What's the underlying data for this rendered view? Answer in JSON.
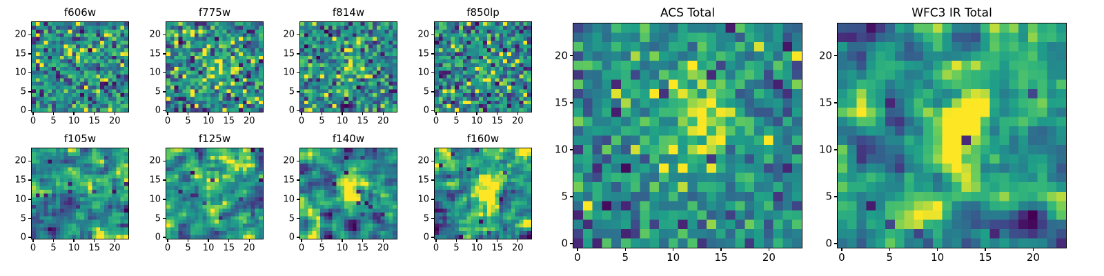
{
  "figure": {
    "background": "#ffffff",
    "colormap": "viridis",
    "viridis_anchors": [
      "#440154",
      "#482878",
      "#3e4a89",
      "#31688e",
      "#26828e",
      "#1f9e89",
      "#35b779",
      "#6dcd59",
      "#fde725"
    ]
  },
  "chart_data": [
    {
      "type": "heatmap",
      "title": "f606w",
      "grid_size": 24,
      "xlim": [
        -0.5,
        23.5
      ],
      "ylim": [
        -0.5,
        23.5
      ],
      "xticks": [
        0,
        5,
        10,
        15,
        20
      ],
      "yticks": [
        0,
        5,
        10,
        15,
        20
      ],
      "colormap": "viridis",
      "description": "noisy ACS filter cutout, speckled pixels, faint central source",
      "gen": {
        "seed": 606,
        "base": 0.58,
        "noise": 0.22,
        "smooth": 0,
        "dark": 0.06,
        "blob": {
          "x": 12,
          "y": 12,
          "sx": 3.0,
          "sy": 4.0,
          "amp": 0.08
        }
      }
    },
    {
      "type": "heatmap",
      "title": "f775w",
      "grid_size": 24,
      "xlim": [
        -0.5,
        23.5
      ],
      "ylim": [
        -0.5,
        23.5
      ],
      "xticks": [
        0,
        5,
        10,
        15,
        20
      ],
      "yticks": [
        0,
        5,
        10,
        15,
        20
      ],
      "colormap": "viridis",
      "description": "noisy ACS filter cutout, faint brightening near center",
      "gen": {
        "seed": 775,
        "base": 0.58,
        "noise": 0.22,
        "smooth": 0,
        "dark": 0.05,
        "blob": {
          "x": 12,
          "y": 12,
          "sx": 3.0,
          "sy": 4.0,
          "amp": 0.18
        }
      }
    },
    {
      "type": "heatmap",
      "title": "f814w",
      "grid_size": 24,
      "xlim": [
        -0.5,
        23.5
      ],
      "ylim": [
        -0.5,
        23.5
      ],
      "xticks": [
        0,
        5,
        10,
        15,
        20
      ],
      "yticks": [
        0,
        5,
        10,
        15,
        20
      ],
      "colormap": "viridis",
      "description": "noisy ACS filter cutout, weak vertical central source",
      "gen": {
        "seed": 814,
        "base": 0.55,
        "noise": 0.21,
        "smooth": 0,
        "dark": 0.06,
        "blob": {
          "x": 12,
          "y": 13,
          "sx": 2.5,
          "sy": 5.0,
          "amp": 0.25
        }
      }
    },
    {
      "type": "heatmap",
      "title": "f850lp",
      "grid_size": 24,
      "xlim": [
        -0.5,
        23.5
      ],
      "ylim": [
        -0.5,
        23.5
      ],
      "xticks": [
        0,
        5,
        10,
        15,
        20
      ],
      "yticks": [
        0,
        5,
        10,
        15,
        20
      ],
      "colormap": "viridis",
      "description": "noisy ACS filter cutout with scattered dark pixels",
      "gen": {
        "seed": 850,
        "base": 0.55,
        "noise": 0.22,
        "smooth": 0,
        "dark": 0.07,
        "blob": {
          "x": 12,
          "y": 12,
          "sx": 3.0,
          "sy": 4.0,
          "amp": 0.15
        }
      }
    },
    {
      "type": "heatmap",
      "title": "f105w",
      "grid_size": 24,
      "xlim": [
        -0.5,
        23.5
      ],
      "ylim": [
        -0.5,
        23.5
      ],
      "xticks": [
        0,
        5,
        10,
        15,
        20
      ],
      "yticks": [
        0,
        5,
        10,
        15,
        20
      ],
      "colormap": "viridis",
      "description": "smoother WFC3 IR cutout, mottled background, faint source",
      "gen": {
        "seed": 105,
        "base": 0.58,
        "noise": 0.27,
        "smooth": 1,
        "dark": 0.02,
        "blob": {
          "x": 11,
          "y": 12,
          "sx": 3.0,
          "sy": 4.0,
          "amp": 0.15
        }
      }
    },
    {
      "type": "heatmap",
      "title": "f125w",
      "grid_size": 24,
      "xlim": [
        -0.5,
        23.5
      ],
      "ylim": [
        -0.5,
        23.5
      ],
      "xticks": [
        0,
        5,
        10,
        15,
        20
      ],
      "yticks": [
        0,
        5,
        10,
        15,
        20
      ],
      "colormap": "viridis",
      "description": "smoother WFC3 IR cutout, central brightening",
      "gen": {
        "seed": 125,
        "base": 0.58,
        "noise": 0.27,
        "smooth": 1,
        "dark": 0.02,
        "blob": {
          "x": 12,
          "y": 11,
          "sx": 3.0,
          "sy": 4.0,
          "amp": 0.3
        }
      }
    },
    {
      "type": "heatmap",
      "title": "f140w",
      "grid_size": 24,
      "xlim": [
        -0.5,
        23.5
      ],
      "ylim": [
        -0.5,
        23.5
      ],
      "xticks": [
        0,
        5,
        10,
        15,
        20
      ],
      "yticks": [
        0,
        5,
        10,
        15,
        20
      ],
      "colormap": "viridis",
      "description": "smoother WFC3 IR cutout, clear elongated central source",
      "gen": {
        "seed": 140,
        "base": 0.56,
        "noise": 0.26,
        "smooth": 1,
        "dark": 0.02,
        "blob": {
          "x": 12,
          "y": 12,
          "sx": 2.5,
          "sy": 4.5,
          "amp": 0.45
        }
      }
    },
    {
      "type": "heatmap",
      "title": "f160w",
      "grid_size": 24,
      "xlim": [
        -0.5,
        23.5
      ],
      "ylim": [
        -0.5,
        23.5
      ],
      "xticks": [
        0,
        5,
        10,
        15,
        20
      ],
      "yticks": [
        0,
        5,
        10,
        15,
        20
      ],
      "colormap": "viridis",
      "description": "smoother WFC3 IR cutout, bright elongated central source",
      "gen": {
        "seed": 160,
        "base": 0.56,
        "noise": 0.26,
        "smooth": 1,
        "dark": 0.02,
        "blob": {
          "x": 12,
          "y": 12,
          "sx": 2.2,
          "sy": 4.5,
          "amp": 0.5
        }
      }
    },
    {
      "type": "heatmap",
      "title": "ACS Total",
      "grid_size": 24,
      "xlim": [
        -0.5,
        23.5
      ],
      "ylim": [
        -0.5,
        23.5
      ],
      "xticks": [
        0,
        5,
        10,
        15,
        20
      ],
      "yticks": [
        0,
        5,
        10,
        15,
        20
      ],
      "colormap": "viridis",
      "description": "stacked ACS image, pixel noise with vertically elongated bright source near center",
      "gen": {
        "seed": 9000,
        "base": 0.56,
        "noise": 0.18,
        "smooth": 0,
        "dark": 0.03,
        "blob": {
          "x": 13,
          "y": 14,
          "sx": 2.8,
          "sy": 4.5,
          "amp": 0.42
        }
      }
    },
    {
      "type": "heatmap",
      "title": "WFC3 IR Total",
      "grid_size": 24,
      "xlim": [
        -0.5,
        23.5
      ],
      "ylim": [
        -0.5,
        23.5
      ],
      "xticks": [
        0,
        5,
        10,
        15,
        20
      ],
      "yticks": [
        0,
        5,
        10,
        15,
        20
      ],
      "colormap": "viridis",
      "description": "stacked WFC3 IR image, smooth green background, bright vertical central source, few dark patches",
      "gen": {
        "seed": 3000,
        "base": 0.58,
        "noise": 0.24,
        "smooth": 1,
        "dark": 0.01,
        "blob": {
          "x": 12.5,
          "y": 12,
          "sx": 2.2,
          "sy": 4.2,
          "amp": 0.58
        },
        "spots": [
          {
            "x": 1,
            "y": 21,
            "s": 1.2,
            "amp": -0.5
          },
          {
            "x": 20,
            "y": 2,
            "s": 1.3,
            "amp": -0.45
          },
          {
            "x": 23,
            "y": 7,
            "s": 1.0,
            "amp": -0.3
          },
          {
            "x": 6,
            "y": 12,
            "s": 0.8,
            "amp": -0.25
          }
        ]
      }
    }
  ]
}
